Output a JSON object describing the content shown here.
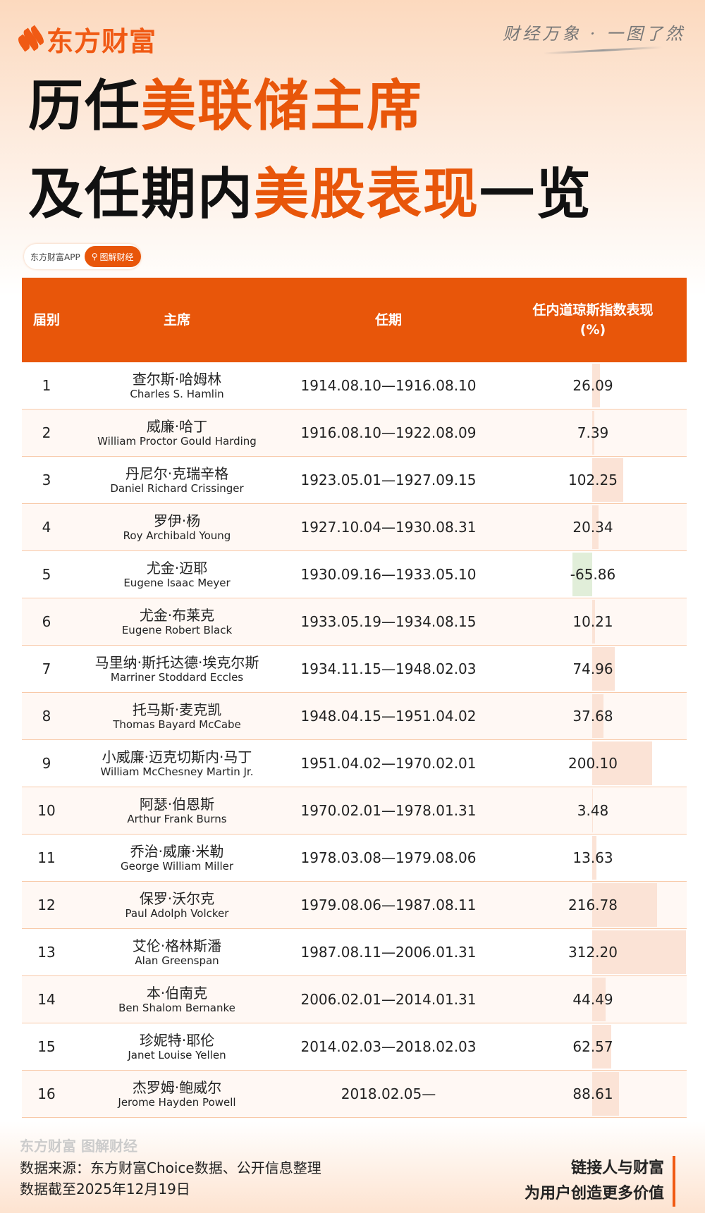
{
  "brand": {
    "name": "东方财富",
    "slogan": "财经万象 · 一图了然"
  },
  "title": {
    "line1_plain": "历任",
    "line1_highlight": "美联储主席",
    "line2_plain": "及任期内",
    "line2_highlight": "美股表现",
    "line2_tail": "一览"
  },
  "app_pill": {
    "label": "东方财富APP",
    "button": "图解财经"
  },
  "colors": {
    "accent": "#e8560a",
    "positive_bar": "#fbe3d6",
    "negative_bar": "#e1eed9"
  },
  "table": {
    "headers": [
      "届别",
      "主席",
      "任期",
      "任内道琼斯指数表现\n(%)"
    ],
    "rows": [
      {
        "no": "1",
        "cn": "查尔斯·哈姆林",
        "en": "Charles S. Hamlin",
        "term": "1914.08.10—1916.08.10",
        "value": "26.09"
      },
      {
        "no": "2",
        "cn": "威廉·哈丁",
        "en": "William Proctor Gould Harding",
        "term": "1916.08.10—1922.08.09",
        "value": "7.39"
      },
      {
        "no": "3",
        "cn": "丹尼尔·克瑞辛格",
        "en": "Daniel Richard Crissinger",
        "term": "1923.05.01—1927.09.15",
        "value": "102.25"
      },
      {
        "no": "4",
        "cn": "罗伊·杨",
        "en": "Roy Archibald Young",
        "term": "1927.10.04—1930.08.31",
        "value": "20.34"
      },
      {
        "no": "5",
        "cn": "尤金·迈耶",
        "en": "Eugene Isaac Meyer",
        "term": "1930.09.16—1933.05.10",
        "value": "-65.86"
      },
      {
        "no": "6",
        "cn": "尤金·布莱克",
        "en": "Eugene Robert Black",
        "term": "1933.05.19—1934.08.15",
        "value": "10.21"
      },
      {
        "no": "7",
        "cn": "马里纳·斯托达德·埃克尔斯",
        "en": "Marriner Stoddard Eccles",
        "term": "1934.11.15—1948.02.03",
        "value": "74.96"
      },
      {
        "no": "8",
        "cn": "托马斯·麦克凯",
        "en": "Thomas Bayard McCabe",
        "term": "1948.04.15—1951.04.02",
        "value": "37.68"
      },
      {
        "no": "9",
        "cn": "小威廉·迈克切斯内·马丁",
        "en": "William McChesney Martin Jr.",
        "term": "1951.04.02—1970.02.01",
        "value": "200.10"
      },
      {
        "no": "10",
        "cn": "阿瑟·伯恩斯",
        "en": "Arthur Frank Burns",
        "term": "1970.02.01—1978.01.31",
        "value": "3.48"
      },
      {
        "no": "11",
        "cn": "乔治·威廉·米勒",
        "en": "George William Miller",
        "term": "1978.03.08—1979.08.06",
        "value": "13.63"
      },
      {
        "no": "12",
        "cn": "保罗·沃尔克",
        "en": "Paul Adolph Volcker",
        "term": "1979.08.06—1987.08.11",
        "value": "216.78"
      },
      {
        "no": "13",
        "cn": "艾伦·格林斯潘",
        "en": "Alan Greenspan",
        "term": "1987.08.11—2006.01.31",
        "value": "312.20"
      },
      {
        "no": "14",
        "cn": "本·伯南克",
        "en": "Ben Shalom Bernanke",
        "term": "2006.02.01—2014.01.31",
        "value": "44.49"
      },
      {
        "no": "15",
        "cn": "珍妮特·耶伦",
        "en": "Janet Louise Yellen",
        "term": "2014.02.03—2018.02.03",
        "value": "62.57"
      },
      {
        "no": "16",
        "cn": "杰罗姆·鲍威尔",
        "en": "Jerome Hayden Powell",
        "term": "2018.02.05—",
        "value": "88.61"
      }
    ]
  },
  "footer": {
    "watermark": "东方财富 图解财经",
    "source": "数据来源：东方财富Choice数据、公开信息整理",
    "cutoff": "数据截至2025年12月19日",
    "motto1": "链接人与财富",
    "motto2": "为用户创造更多价值"
  }
}
